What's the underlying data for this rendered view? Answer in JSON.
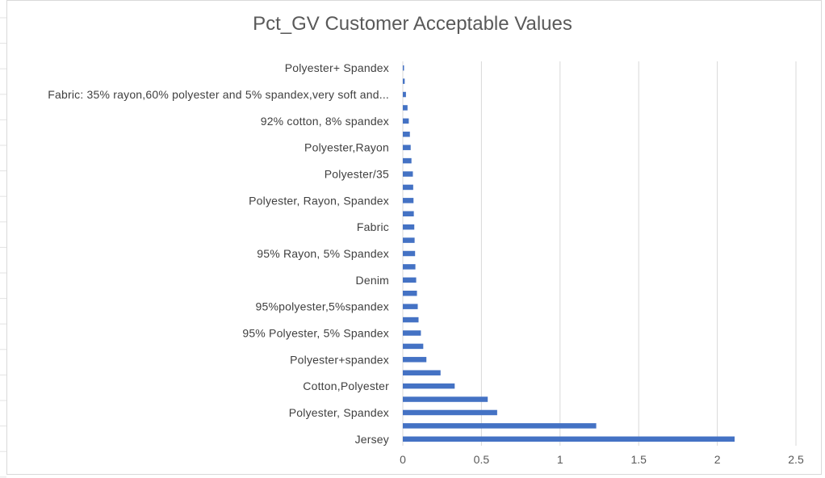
{
  "chart_data": {
    "type": "bar",
    "orientation": "horizontal",
    "title": "Pct_GV Customer Acceptable Values",
    "xlabel": "",
    "ylabel": "",
    "xlim": [
      0,
      2.5
    ],
    "xticks": [
      0,
      0.5,
      1,
      1.5,
      2,
      2.5
    ],
    "xtick_labels": [
      "0",
      "0.5",
      "1",
      "1.5",
      "2",
      "2.5"
    ],
    "grid": "vertical",
    "legend": "none",
    "bar_color": "#4472c4",
    "categories": [
      "Jersey",
      "",
      "Polyester, Spandex",
      "",
      "Cotton,Polyester",
      "",
      "Polyester+spandex",
      "",
      "95% Polyester, 5% Spandex",
      "",
      "95%polyester,5%spandex",
      "",
      "Denim",
      "",
      "95% Rayon, 5% Spandex",
      "",
      "Fabric",
      "",
      "Polyester, Rayon, Spandex",
      "",
      "Polyester/35",
      "",
      "Polyester,Rayon",
      "",
      "92% cotton, 8% spandex",
      "",
      "Fabric: 35% rayon,60% polyester and 5% spandex,very soft and...",
      "",
      "Polyester+ Spandex"
    ],
    "values": [
      2.11,
      1.23,
      0.6,
      0.54,
      0.33,
      0.24,
      0.15,
      0.13,
      0.115,
      0.1,
      0.095,
      0.09,
      0.085,
      0.08,
      0.078,
      0.075,
      0.073,
      0.07,
      0.068,
      0.066,
      0.064,
      0.055,
      0.05,
      0.045,
      0.038,
      0.03,
      0.02,
      0.012,
      0.007
    ]
  }
}
